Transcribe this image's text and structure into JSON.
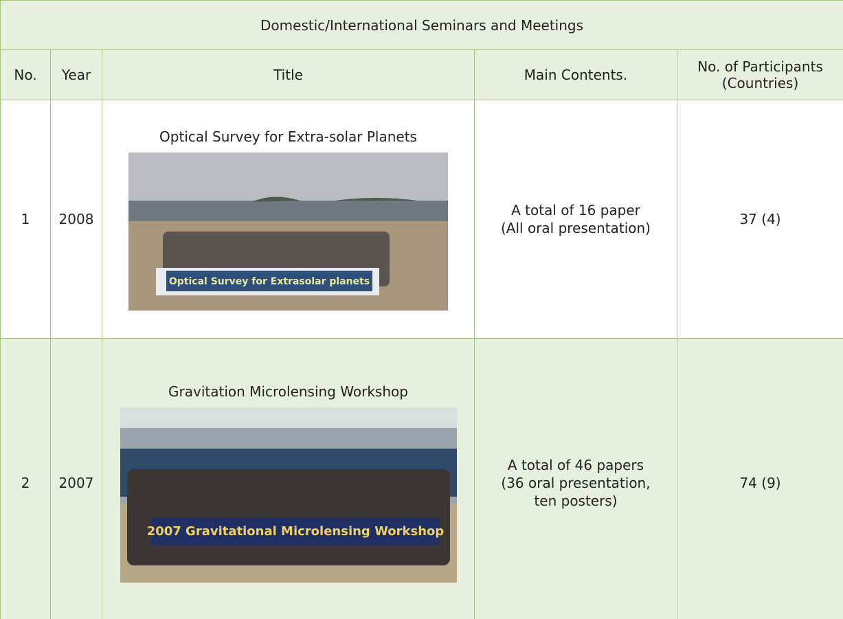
{
  "table": {
    "caption": "Domestic/International Seminars and Meetings",
    "headers": [
      "No.",
      "Year",
      "Title",
      "Main Contents.",
      [
        "No. of Participants",
        "(Countries)"
      ]
    ],
    "rows": [
      {
        "no": "1",
        "year": "2008",
        "title": "Optical Survey for Extra-solar Planets",
        "photo_banner": "Optical Survey for Extrasolar planets",
        "contents": [
          "A total of 16 paper",
          "(All oral presentation)"
        ],
        "participants": "37 (4)"
      },
      {
        "no": "2",
        "year": "2007",
        "title": "Gravitation Microlensing Workshop",
        "photo_banner": "2007 Gravitational Microlensing Workshop",
        "contents": [
          "A total of 46 papers",
          "(36 oral presentation,",
          "ten posters)"
        ],
        "participants": "74 (9)"
      }
    ]
  }
}
